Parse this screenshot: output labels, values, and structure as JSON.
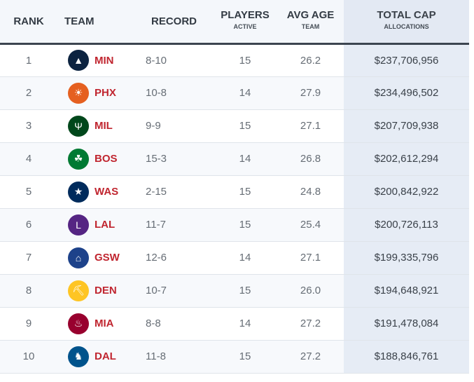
{
  "headers": {
    "rank": "RANK",
    "team": "TEAM",
    "record": "RECORD",
    "players": "PLAYERS",
    "players_sub": "ACTIVE",
    "age": "AVG AGE",
    "age_sub": "TEAM",
    "cap": "TOTAL CAP",
    "cap_sub": "ALLOCATIONS"
  },
  "rows": [
    {
      "rank": "1",
      "team": "MIN",
      "record": "8-10",
      "players": "15",
      "age": "26.2",
      "cap": "$237,706,956",
      "logo": "timberwolves-logo",
      "color": "#0c2340",
      "glyph": "▲"
    },
    {
      "rank": "2",
      "team": "PHX",
      "record": "10-8",
      "players": "14",
      "age": "27.9",
      "cap": "$234,496,502",
      "logo": "suns-logo",
      "color": "#e56020",
      "glyph": "☀"
    },
    {
      "rank": "3",
      "team": "MIL",
      "record": "9-9",
      "players": "15",
      "age": "27.1",
      "cap": "$207,709,938",
      "logo": "bucks-logo",
      "color": "#00471b",
      "glyph": "Ψ"
    },
    {
      "rank": "4",
      "team": "BOS",
      "record": "15-3",
      "players": "14",
      "age": "26.8",
      "cap": "$202,612,294",
      "logo": "celtics-logo",
      "color": "#007a33",
      "glyph": "☘"
    },
    {
      "rank": "5",
      "team": "WAS",
      "record": "2-15",
      "players": "15",
      "age": "24.8",
      "cap": "$200,842,922",
      "logo": "wizards-logo",
      "color": "#002b5c",
      "glyph": "★"
    },
    {
      "rank": "6",
      "team": "LAL",
      "record": "11-7",
      "players": "15",
      "age": "25.4",
      "cap": "$200,726,113",
      "logo": "lakers-logo",
      "color": "#552583",
      "glyph": "L"
    },
    {
      "rank": "7",
      "team": "GSW",
      "record": "12-6",
      "players": "14",
      "age": "27.1",
      "cap": "$199,335,796",
      "logo": "warriors-logo",
      "color": "#1d428a",
      "glyph": "⌂"
    },
    {
      "rank": "8",
      "team": "DEN",
      "record": "10-7",
      "players": "15",
      "age": "26.0",
      "cap": "$194,648,921",
      "logo": "nuggets-logo",
      "color": "#fec524",
      "glyph": "⛏"
    },
    {
      "rank": "9",
      "team": "MIA",
      "record": "8-8",
      "players": "14",
      "age": "27.2",
      "cap": "$191,478,084",
      "logo": "heat-logo",
      "color": "#98002e",
      "glyph": "♨"
    },
    {
      "rank": "10",
      "team": "DAL",
      "record": "11-8",
      "players": "15",
      "age": "27.2",
      "cap": "$188,846,761",
      "logo": "mavericks-logo",
      "color": "#00538c",
      "glyph": "♞"
    }
  ]
}
